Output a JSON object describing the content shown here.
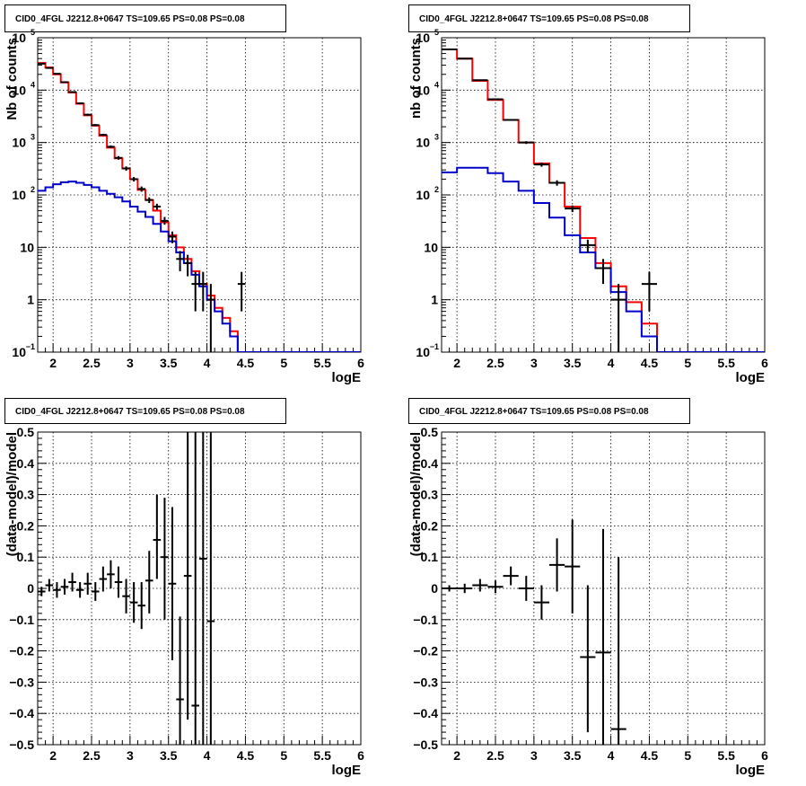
{
  "panels": [
    {
      "id": "top-left",
      "title": "CID0_4FGL J2212.8+0647 TS=109.65 PS=0.08 PS=0.08",
      "xlabel": "logE",
      "ylabel": "Nb of counts",
      "yscale": "log",
      "xlim": [
        1.8,
        6.0
      ],
      "ylim": [
        0.1,
        100000
      ],
      "xticks": [
        "2",
        "2.5",
        "3",
        "3.5",
        "4",
        "4.5",
        "5",
        "5.5",
        "6"
      ],
      "yticks": [
        {
          "v": 0.1,
          "base": "10",
          "exp": "−1"
        },
        {
          "v": 1,
          "base": "1",
          "exp": ""
        },
        {
          "v": 10,
          "base": "10",
          "exp": ""
        },
        {
          "v": 100,
          "base": "10",
          "exp": "2"
        },
        {
          "v": 1000,
          "base": "10",
          "exp": "3"
        },
        {
          "v": 10000,
          "base": "10",
          "exp": "4"
        },
        {
          "v": 100000,
          "base": "10",
          "exp": "5"
        }
      ]
    },
    {
      "id": "top-right",
      "title": "CID0_4FGL J2212.8+0647 TS=109.65 PS=0.08 PS=0.08",
      "xlabel": "logE",
      "ylabel": "nb of counts",
      "yscale": "log",
      "xlim": [
        1.8,
        6.0
      ],
      "ylim": [
        0.1,
        100000
      ],
      "xticks": [
        "2",
        "2.5",
        "3",
        "3.5",
        "4",
        "4.5",
        "5",
        "5.5",
        "6"
      ],
      "yticks": [
        {
          "v": 0.1,
          "base": "10",
          "exp": "−1"
        },
        {
          "v": 1,
          "base": "1",
          "exp": ""
        },
        {
          "v": 10,
          "base": "10",
          "exp": ""
        },
        {
          "v": 100,
          "base": "10",
          "exp": "2"
        },
        {
          "v": 1000,
          "base": "10",
          "exp": "3"
        },
        {
          "v": 10000,
          "base": "10",
          "exp": "4"
        },
        {
          "v": 100000,
          "base": "10",
          "exp": "5"
        }
      ]
    },
    {
      "id": "bottom-left",
      "title": "CID0_4FGL J2212.8+0647 TS=109.65 PS=0.08 PS=0.08",
      "xlabel": "logE",
      "ylabel": "(data-model)/model",
      "yscale": "linear",
      "xlim": [
        1.8,
        6.0
      ],
      "ylim": [
        -0.5,
        0.5
      ],
      "xticks": [
        "2",
        "2.5",
        "3",
        "3.5",
        "4",
        "4.5",
        "5",
        "5.5",
        "6"
      ],
      "yticks": [
        {
          "v": 0.5,
          "base": "0.5",
          "exp": ""
        },
        {
          "v": 0.4,
          "base": "0.4",
          "exp": ""
        },
        {
          "v": 0.3,
          "base": "0.3",
          "exp": ""
        },
        {
          "v": 0.2,
          "base": "0.2",
          "exp": ""
        },
        {
          "v": 0.1,
          "base": "0.1",
          "exp": ""
        },
        {
          "v": 0,
          "base": "0",
          "exp": ""
        },
        {
          "v": -0.1,
          "base": "−0.1",
          "exp": ""
        },
        {
          "v": -0.2,
          "base": "−0.2",
          "exp": ""
        },
        {
          "v": -0.3,
          "base": "−0.3",
          "exp": ""
        },
        {
          "v": -0.4,
          "base": "−0.4",
          "exp": ""
        },
        {
          "v": -0.5,
          "base": "−0.5",
          "exp": ""
        }
      ]
    },
    {
      "id": "bottom-right",
      "title": "CID0_4FGL J2212.8+0647 TS=109.65 PS=0.08 PS=0.08",
      "xlabel": "logE",
      "ylabel": "(data-model)/model",
      "yscale": "linear",
      "xlim": [
        1.8,
        6.0
      ],
      "ylim": [
        -0.5,
        0.5
      ],
      "xticks": [
        "2",
        "2.5",
        "3",
        "3.5",
        "4",
        "4.5",
        "5",
        "5.5",
        "6"
      ],
      "yticks": [
        {
          "v": 0.5,
          "base": "0.5",
          "exp": ""
        },
        {
          "v": 0.4,
          "base": "0.4",
          "exp": ""
        },
        {
          "v": 0.3,
          "base": "0.3",
          "exp": ""
        },
        {
          "v": 0.2,
          "base": "0.2",
          "exp": ""
        },
        {
          "v": 0.1,
          "base": "0.1",
          "exp": ""
        },
        {
          "v": 0,
          "base": "0",
          "exp": ""
        },
        {
          "v": -0.1,
          "base": "−0.1",
          "exp": ""
        },
        {
          "v": -0.2,
          "base": "−0.2",
          "exp": ""
        },
        {
          "v": -0.3,
          "base": "−0.3",
          "exp": ""
        },
        {
          "v": -0.4,
          "base": "−0.4",
          "exp": ""
        },
        {
          "v": -0.5,
          "base": "−0.5",
          "exp": ""
        }
      ]
    }
  ],
  "colors": {
    "total_model": "#ff0000",
    "component": "#0000cc",
    "data": "#000000",
    "grid": "#000000"
  },
  "chart_data": [
    {
      "panel": "top-left",
      "type": "line",
      "title": "CID0_4FGL J2212.8+0647 TS=109.65 PS=0.08 PS=0.08",
      "xlabel": "logE",
      "ylabel": "Nb of counts",
      "yscale": "log",
      "grid": true,
      "bin_edges": [
        1.8,
        1.9,
        2.0,
        2.1,
        2.2,
        2.3,
        2.4,
        2.5,
        2.6,
        2.7,
        2.8,
        2.9,
        3.0,
        3.1,
        3.2,
        3.3,
        3.4,
        3.5,
        3.6,
        3.7,
        3.8,
        3.9,
        4.0,
        4.1,
        4.2,
        4.3,
        4.4,
        4.5,
        4.6,
        4.7,
        4.8,
        4.9,
        5.0,
        5.1,
        5.2,
        5.3,
        5.4,
        5.5,
        5.6,
        5.7,
        5.8,
        5.9,
        6.0
      ],
      "series": [
        {
          "kind": "histogram",
          "color": "#ff0000",
          "values": [
            33000,
            27000,
            20000,
            14000,
            9000,
            5500,
            3300,
            2100,
            1350,
            800,
            500,
            320,
            200,
            125,
            80,
            50,
            30,
            17,
            10,
            6,
            3.5,
            2,
            1.2,
            0.7,
            0.45,
            0.25,
            0.1,
            0.1,
            0.1,
            0.1,
            0.1,
            0.1,
            0.1,
            0.1,
            0.1,
            0.1,
            0.1,
            0.1,
            0.1,
            0.1,
            0.1,
            0.1
          ]
        },
        {
          "kind": "histogram",
          "color": "#0000cc",
          "values": [
            120,
            140,
            160,
            175,
            180,
            170,
            155,
            140,
            120,
            105,
            90,
            75,
            60,
            48,
            38,
            28,
            20,
            13,
            8,
            5,
            3,
            1.8,
            1,
            0.6,
            0.35,
            0.2,
            0.1,
            0.1,
            0.1,
            0.1,
            0.1,
            0.1,
            0.1,
            0.1,
            0.1,
            0.1,
            0.1,
            0.1,
            0.1,
            0.1,
            0.1,
            0.1
          ]
        },
        {
          "kind": "errorbar",
          "color": "#000000",
          "half_width": 0.05,
          "points": [
            {
              "x": 1.85,
              "y": 32000,
              "lo": 31500,
              "hi": 32500
            },
            {
              "x": 1.95,
              "y": 26500,
              "lo": 26100,
              "hi": 26900
            },
            {
              "x": 2.05,
              "y": 20500,
              "lo": 20000,
              "hi": 21000
            },
            {
              "x": 2.15,
              "y": 14200,
              "lo": 13800,
              "hi": 14600
            },
            {
              "x": 2.25,
              "y": 9200,
              "lo": 8900,
              "hi": 9500
            },
            {
              "x": 2.35,
              "y": 5600,
              "lo": 5400,
              "hi": 5800
            },
            {
              "x": 2.45,
              "y": 3400,
              "lo": 3250,
              "hi": 3550
            },
            {
              "x": 2.55,
              "y": 2150,
              "lo": 2050,
              "hi": 2250
            },
            {
              "x": 2.65,
              "y": 1400,
              "lo": 1330,
              "hi": 1470
            },
            {
              "x": 2.75,
              "y": 830,
              "lo": 780,
              "hi": 880
            },
            {
              "x": 2.85,
              "y": 510,
              "lo": 470,
              "hi": 550
            },
            {
              "x": 2.95,
              "y": 320,
              "lo": 290,
              "hi": 350
            },
            {
              "x": 3.05,
              "y": 200,
              "lo": 180,
              "hi": 220
            },
            {
              "x": 3.15,
              "y": 130,
              "lo": 115,
              "hi": 145
            },
            {
              "x": 3.25,
              "y": 80,
              "lo": 70,
              "hi": 90
            },
            {
              "x": 3.35,
              "y": 60,
              "lo": 52,
              "hi": 68
            },
            {
              "x": 3.45,
              "y": 32,
              "lo": 27,
              "hi": 38
            },
            {
              "x": 3.55,
              "y": 16,
              "lo": 12,
              "hi": 20
            },
            {
              "x": 3.65,
              "y": 6,
              "lo": 3.5,
              "hi": 8.5
            },
            {
              "x": 3.75,
              "y": 5,
              "lo": 2.8,
              "hi": 7.2
            },
            {
              "x": 3.85,
              "y": 2,
              "lo": 0.6,
              "hi": 3.4
            },
            {
              "x": 3.95,
              "y": 2,
              "lo": 0.6,
              "hi": 3.4
            },
            {
              "x": 4.05,
              "y": 1,
              "lo": 0.1,
              "hi": 2.0
            },
            {
              "x": 4.45,
              "y": 2,
              "lo": 0.6,
              "hi": 3.4
            }
          ]
        }
      ]
    },
    {
      "panel": "top-right",
      "type": "line",
      "title": "CID0_4FGL J2212.8+0647 TS=109.65 PS=0.08 PS=0.08",
      "xlabel": "logE",
      "ylabel": "nb of counts",
      "yscale": "log",
      "grid": true,
      "bin_edges": [
        1.8,
        2.0,
        2.2,
        2.4,
        2.6,
        2.8,
        3.0,
        3.2,
        3.4,
        3.6,
        3.8,
        4.0,
        4.2,
        4.4,
        4.6,
        4.8,
        5.0,
        5.2,
        5.4,
        5.6,
        5.8,
        6.0
      ],
      "series": [
        {
          "kind": "histogram",
          "color": "#ff0000",
          "values": [
            60000,
            40000,
            15000,
            6500,
            2700,
            1000,
            400,
            170,
            60,
            15,
            5,
            1.8,
            0.9,
            0.35,
            0.1,
            0.1,
            0.1,
            0.1,
            0.1,
            0.1,
            0.1
          ]
        },
        {
          "kind": "histogram",
          "color": "#0000cc",
          "values": [
            270,
            330,
            330,
            260,
            180,
            120,
            70,
            37,
            17,
            8,
            4,
            1.4,
            0.6,
            0.2,
            0.1,
            0.1,
            0.1,
            0.1,
            0.1,
            0.1,
            0.1
          ]
        },
        {
          "kind": "errorbar",
          "color": "#000000",
          "half_width": 0.1,
          "points": [
            {
              "x": 1.9,
              "y": 60000,
              "lo": 59500,
              "hi": 60500
            },
            {
              "x": 2.1,
              "y": 40000,
              "lo": 39600,
              "hi": 40400
            },
            {
              "x": 2.3,
              "y": 15500,
              "lo": 15200,
              "hi": 15800
            },
            {
              "x": 2.5,
              "y": 6700,
              "lo": 6500,
              "hi": 6900
            },
            {
              "x": 2.7,
              "y": 2700,
              "lo": 2600,
              "hi": 2800
            },
            {
              "x": 2.9,
              "y": 1000,
              "lo": 940,
              "hi": 1060
            },
            {
              "x": 3.1,
              "y": 380,
              "lo": 345,
              "hi": 415
            },
            {
              "x": 3.3,
              "y": 170,
              "lo": 150,
              "hi": 190
            },
            {
              "x": 3.5,
              "y": 55,
              "lo": 47,
              "hi": 63
            },
            {
              "x": 3.7,
              "y": 11,
              "lo": 8,
              "hi": 14
            },
            {
              "x": 3.9,
              "y": 4,
              "lo": 2,
              "hi": 6
            },
            {
              "x": 4.1,
              "y": 1,
              "lo": 0.1,
              "hi": 2.0
            },
            {
              "x": 4.5,
              "y": 2,
              "lo": 0.6,
              "hi": 3.4
            }
          ]
        }
      ]
    },
    {
      "panel": "bottom-left",
      "type": "scatter",
      "title": "CID0_4FGL J2212.8+0647 TS=109.65 PS=0.08 PS=0.08",
      "xlabel": "logE",
      "ylabel": "(data-model)/model",
      "ylim": [
        -0.5,
        0.5
      ],
      "grid": true,
      "series": [
        {
          "kind": "errorbar",
          "color": "#000000",
          "half_width": 0.05,
          "points": [
            {
              "x": 1.85,
              "y": -0.01,
              "lo": -0.025,
              "hi": 0.005
            },
            {
              "x": 1.95,
              "y": 0.01,
              "lo": -0.01,
              "hi": 0.03
            },
            {
              "x": 2.05,
              "y": -0.005,
              "lo": -0.03,
              "hi": 0.02
            },
            {
              "x": 2.15,
              "y": 0.005,
              "lo": -0.02,
              "hi": 0.03
            },
            {
              "x": 2.25,
              "y": 0.02,
              "lo": -0.01,
              "hi": 0.05
            },
            {
              "x": 2.35,
              "y": -0.005,
              "lo": -0.03,
              "hi": 0.02
            },
            {
              "x": 2.45,
              "y": 0.015,
              "lo": -0.02,
              "hi": 0.05
            },
            {
              "x": 2.55,
              "y": -0.01,
              "lo": -0.04,
              "hi": 0.02
            },
            {
              "x": 2.65,
              "y": 0.03,
              "lo": -0.01,
              "hi": 0.07
            },
            {
              "x": 2.75,
              "y": 0.045,
              "lo": 0.0,
              "hi": 0.09
            },
            {
              "x": 2.85,
              "y": 0.02,
              "lo": -0.03,
              "hi": 0.07
            },
            {
              "x": 2.95,
              "y": -0.025,
              "lo": -0.08,
              "hi": 0.03
            },
            {
              "x": 3.05,
              "y": -0.045,
              "lo": -0.11,
              "hi": 0.02
            },
            {
              "x": 3.15,
              "y": -0.055,
              "lo": -0.13,
              "hi": 0.02
            },
            {
              "x": 3.25,
              "y": 0.025,
              "lo": -0.08,
              "hi": 0.12
            },
            {
              "x": 3.35,
              "y": 0.155,
              "lo": 0.03,
              "hi": 0.3
            },
            {
              "x": 3.45,
              "y": 0.1,
              "lo": -0.1,
              "hi": 0.29
            },
            {
              "x": 3.55,
              "y": 0.015,
              "lo": -0.23,
              "hi": 0.26
            },
            {
              "x": 3.65,
              "y": -0.355,
              "lo": -0.5,
              "hi": -0.09
            },
            {
              "x": 3.75,
              "y": 0.04,
              "lo": -0.42,
              "hi": 0.5
            },
            {
              "x": 3.85,
              "y": -0.375,
              "lo": -0.5,
              "hi": 0.5
            },
            {
              "x": 3.95,
              "y": 0.095,
              "lo": -0.5,
              "hi": 0.5
            },
            {
              "x": 4.05,
              "y": -0.105,
              "lo": -0.5,
              "hi": 0.5
            }
          ]
        }
      ]
    },
    {
      "panel": "bottom-right",
      "type": "scatter",
      "title": "CID0_4FGL J2212.8+0647 TS=109.65 PS=0.08 PS=0.08",
      "xlabel": "logE",
      "ylabel": "(data-model)/model",
      "ylim": [
        -0.5,
        0.5
      ],
      "grid": true,
      "series": [
        {
          "kind": "errorbar",
          "color": "#000000",
          "half_width": 0.1,
          "points": [
            {
              "x": 1.9,
              "y": 0.0,
              "lo": -0.01,
              "hi": 0.01
            },
            {
              "x": 2.1,
              "y": 0.0,
              "lo": -0.015,
              "hi": 0.015
            },
            {
              "x": 2.3,
              "y": 0.01,
              "lo": -0.01,
              "hi": 0.03
            },
            {
              "x": 2.5,
              "y": 0.005,
              "lo": -0.015,
              "hi": 0.025
            },
            {
              "x": 2.7,
              "y": 0.04,
              "lo": 0.01,
              "hi": 0.07
            },
            {
              "x": 2.9,
              "y": 0.0,
              "lo": -0.04,
              "hi": 0.04
            },
            {
              "x": 3.1,
              "y": -0.045,
              "lo": -0.1,
              "hi": 0.01
            },
            {
              "x": 3.3,
              "y": 0.075,
              "lo": -0.01,
              "hi": 0.16
            },
            {
              "x": 3.5,
              "y": 0.07,
              "lo": -0.08,
              "hi": 0.22
            },
            {
              "x": 3.7,
              "y": -0.22,
              "lo": -0.46,
              "hi": 0.01
            },
            {
              "x": 3.9,
              "y": -0.205,
              "lo": -0.5,
              "hi": 0.19
            },
            {
              "x": 4.1,
              "y": -0.45,
              "lo": -0.5,
              "hi": 0.1
            }
          ]
        }
      ]
    }
  ]
}
